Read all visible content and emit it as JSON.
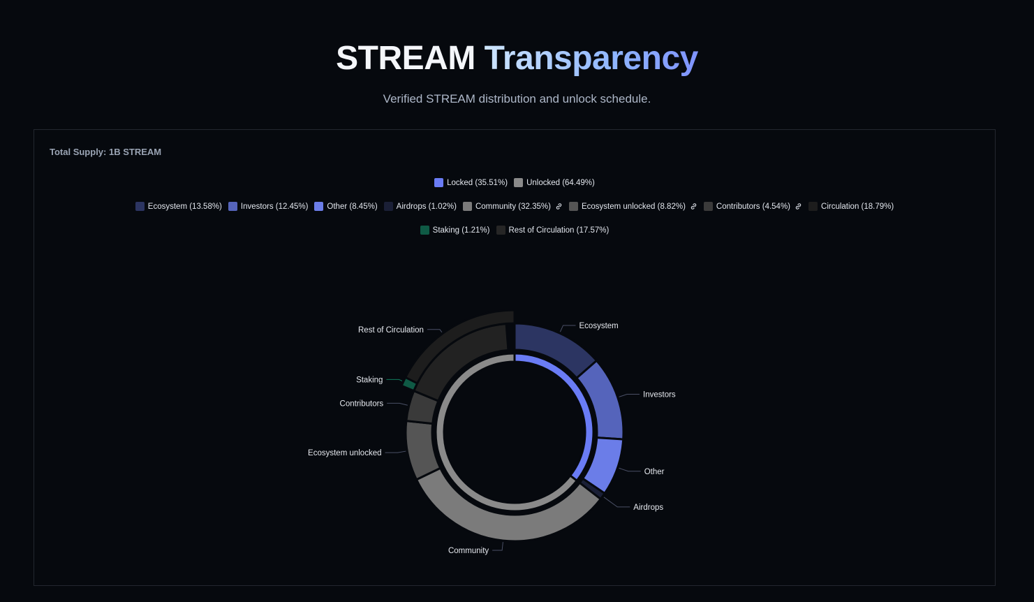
{
  "header": {
    "title_main": "STREAM",
    "title_accent": "Transparency",
    "subtitle": "Verified STREAM distribution and unlock schedule."
  },
  "card": {
    "supply_label": "Total Supply: 1B STREAM"
  },
  "legend": {
    "row1": [
      {
        "label": "Locked (35.51%)",
        "color": "#6a7cf5"
      },
      {
        "label": "Unlocked (64.49%)",
        "color": "#8a8a8a"
      }
    ],
    "row2": [
      {
        "label": "Ecosystem (13.58%)",
        "color": "#2c3562",
        "link": false
      },
      {
        "label": "Investors (12.45%)",
        "color": "#5564bb",
        "link": false
      },
      {
        "label": "Other (8.45%)",
        "color": "#6b7de8",
        "link": false
      },
      {
        "label": "Airdrops (1.02%)",
        "color": "#1a1f36",
        "link": false
      },
      {
        "label": "Community (32.35%)",
        "color": "#7b7b7b",
        "link": true
      },
      {
        "label": "Ecosystem unlocked (8.82%)",
        "color": "#555555",
        "link": true
      },
      {
        "label": "Contributors (4.54%)",
        "color": "#3a3a3a",
        "link": true
      },
      {
        "label": "Circulation (18.79%)",
        "color": "#1d1d1d",
        "link": false
      }
    ],
    "row3": [
      {
        "label": "Staking (1.21%)",
        "color": "#0f5a45"
      },
      {
        "label": "Rest of Circulation (17.57%)",
        "color": "#262626"
      }
    ]
  },
  "chart_data": {
    "type": "pie",
    "inner_ring": [
      {
        "name": "Locked",
        "value": 35.51,
        "color": "#6a7cf5"
      },
      {
        "name": "Unlocked",
        "value": 64.49,
        "color": "#8a8a8a"
      }
    ],
    "outer_ring": [
      {
        "name": "Ecosystem",
        "value": 13.58,
        "color": "#2c3562"
      },
      {
        "name": "Investors",
        "value": 12.45,
        "color": "#5564bb"
      },
      {
        "name": "Other",
        "value": 8.45,
        "color": "#6b7de8"
      },
      {
        "name": "Airdrops",
        "value": 1.02,
        "color": "#1a1f36"
      },
      {
        "name": "Community",
        "value": 32.35,
        "color": "#7b7b7b"
      },
      {
        "name": "Ecosystem unlocked",
        "value": 8.82,
        "color": "#555555"
      },
      {
        "name": "Contributors",
        "value": 4.54,
        "color": "#3a3a3a"
      },
      {
        "name": "Rest of Circulation",
        "value": 17.57,
        "color": "#222222"
      }
    ],
    "circulation_band": {
      "name": "Circulation",
      "value": 18.79,
      "color": "#1d1d1d"
    },
    "staking": {
      "name": "Staking",
      "value": 1.21,
      "color": "#0f5a45"
    }
  }
}
